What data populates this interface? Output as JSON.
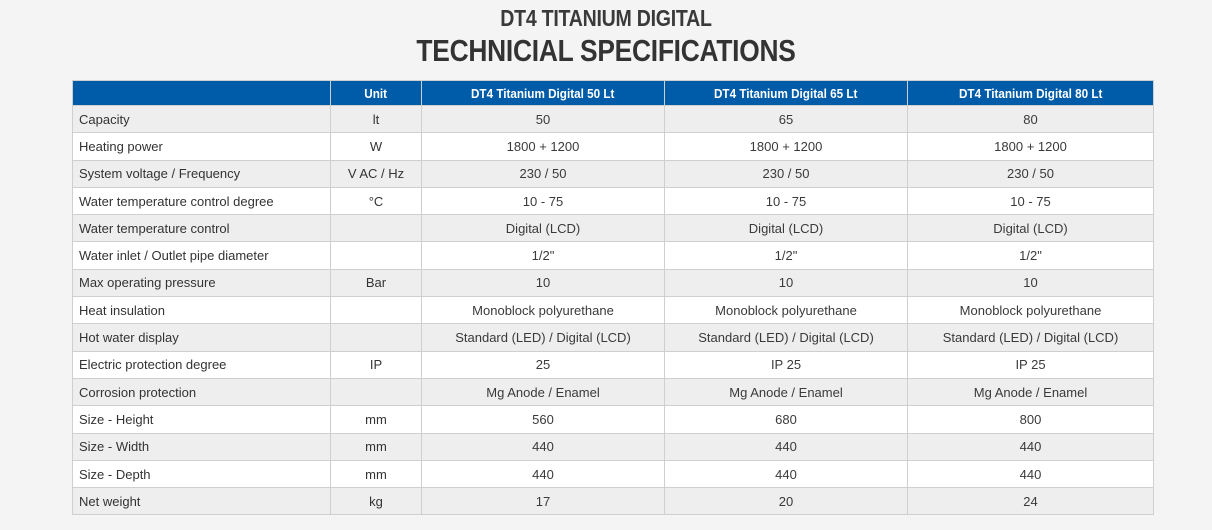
{
  "title_line1": "DT4 TITANIUM DIGITAL",
  "title_line2": "TECHNICIAL SPECIFICATIONS",
  "colors": {
    "header_bg": "#005ba8",
    "row_alt": "#eeeeee",
    "page_bg": "#f4f4f4"
  },
  "table": {
    "headers": [
      "",
      "Unit",
      "DT4 Titanium Digital 50 Lt",
      "DT4 Titanium Digital 65 Lt",
      "DT4 Titanium Digital 80 Lt"
    ],
    "rows": [
      [
        "Capacity",
        "lt",
        "50",
        "65",
        "80"
      ],
      [
        "Heating power",
        "W",
        "1800 + 1200",
        "1800 + 1200",
        "1800 + 1200"
      ],
      [
        "System voltage / Frequency",
        "V AC / Hz",
        "230 / 50",
        "230 / 50",
        "230 / 50"
      ],
      [
        "Water temperature control degree",
        "°C",
        "10 - 75",
        "10 - 75",
        "10 - 75"
      ],
      [
        "Water temperature control",
        "",
        "Digital (LCD)",
        "Digital (LCD)",
        "Digital (LCD)"
      ],
      [
        "Water inlet / Outlet pipe diameter",
        "",
        "1/2\"",
        "1/2\"",
        "1/2\""
      ],
      [
        "Max operating pressure",
        "Bar",
        "10",
        "10",
        "10"
      ],
      [
        "Heat insulation",
        "",
        "Monoblock polyurethane",
        "Monoblock polyurethane",
        "Monoblock polyurethane"
      ],
      [
        "Hot water display",
        "",
        "Standard (LED) / Digital (LCD)",
        "Standard (LED) / Digital (LCD)",
        "Standard (LED) / Digital (LCD)"
      ],
      [
        "Electric protection degree",
        "IP",
        "25",
        "IP 25",
        "IP 25"
      ],
      [
        "Corrosion protection",
        "",
        "Mg Anode / Enamel",
        "Mg Anode / Enamel",
        "Mg Anode / Enamel"
      ],
      [
        "Size - Height",
        "mm",
        "560",
        "680",
        "800"
      ],
      [
        "Size - Width",
        "mm",
        "440",
        "440",
        "440"
      ],
      [
        "Size - Depth",
        "mm",
        "440",
        "440",
        "440"
      ],
      [
        "Net weight",
        "kg",
        "17",
        "20",
        "24"
      ]
    ]
  }
}
